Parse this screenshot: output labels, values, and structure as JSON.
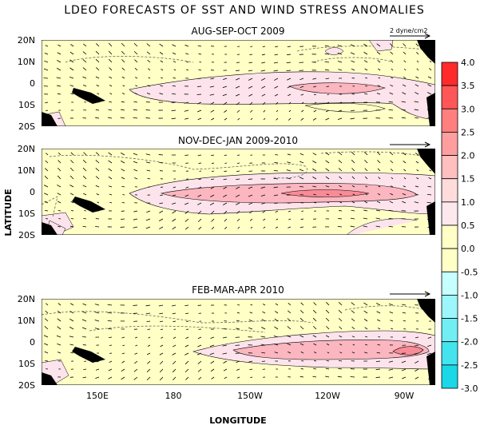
{
  "figure": {
    "title": "LDEO FORECASTS OF SST AND WIND STRESS ANOMALIES",
    "ylabel": "LATITUDE",
    "xlabel": "LONGITUDE",
    "vector_scale_label": "2 dyne/cm2"
  },
  "panels": [
    {
      "title": "AUG-SEP-OCT 2009",
      "show_scale_label": true
    },
    {
      "title": "NOV-DEC-JAN 2009-2010",
      "show_scale_label": false
    },
    {
      "title": "FEB-MAR-APR 2010",
      "show_scale_label": false
    }
  ],
  "axes": {
    "lat_ticks": [
      "20N",
      "10N",
      "0",
      "10S",
      "20S"
    ],
    "lon_ticks": [
      "150E",
      "180",
      "150W",
      "120W",
      "90W"
    ]
  },
  "colorbar": {
    "labels": [
      "4.0",
      "3.5",
      "3.0",
      "2.5",
      "2.0",
      "1.5",
      "1.0",
      "0.5",
      "0.0",
      "-0.5",
      "-1.0",
      "-1.5",
      "-2.0",
      "-2.5",
      "-3.0"
    ],
    "colors": [
      "#ff2b2b",
      "#ff5757",
      "#ff7f7f",
      "#ff9e9e",
      "#ffbfbf",
      "#ffdcdc",
      "#fde8ee",
      "#ffffc6",
      "#ffffc6",
      "#c6ffff",
      "#9cf6fa",
      "#70eef4",
      "#44e4ee",
      "#1ad8e8"
    ]
  },
  "colors": {
    "background_band": "#ffffc6",
    "anomaly_light": "#fde4ec",
    "anomaly_medium": "#fbb6bf",
    "anomaly_strong": "#f88b96",
    "land": "#000000"
  }
}
